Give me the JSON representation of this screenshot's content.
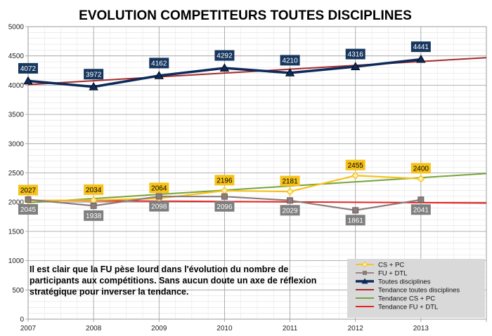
{
  "chart_data": {
    "type": "line",
    "title": "EVOLUTION COMPETITEURS TOUTES DISCIPLINES",
    "x": [
      "2007",
      "2008",
      "2009",
      "2010",
      "2011",
      "2012",
      "2013"
    ],
    "xlim": [
      2007,
      2014
    ],
    "ylim": [
      0,
      5000
    ],
    "y_ticks": [
      "0",
      "500",
      "1000",
      "1500",
      "2000",
      "2500",
      "3000",
      "3500",
      "4000",
      "4500",
      "5000"
    ],
    "grid": true,
    "legend_position": "bottom-right",
    "series": [
      {
        "name": "CS + PC",
        "values": [
          2027,
          2034,
          2064,
          2196,
          2181,
          2455,
          2400
        ],
        "labels": [
          "2027",
          "2034",
          "2064",
          "2196",
          "2181",
          "2455",
          "2400"
        ],
        "color": "#f5c21b",
        "label_bg": "#f5c21b",
        "label_fg": "#000000",
        "marker": "diamond"
      },
      {
        "name": "FU + DTL",
        "values": [
          2045,
          1938,
          2098,
          2096,
          2029,
          1861,
          2041
        ],
        "labels": [
          "2045",
          "1938",
          "2098",
          "2096",
          "2029",
          "1861",
          "2041"
        ],
        "color": "#8c7b7b",
        "label_bg": "#7f7f7f",
        "label_fg": "#ffffff",
        "marker": "square"
      },
      {
        "name": "Toutes disciplines",
        "values": [
          4072,
          3972,
          4162,
          4292,
          4210,
          4316,
          4441
        ],
        "labels": [
          "4072",
          "3972",
          "4162",
          "4292",
          "4210",
          "4316",
          "4441"
        ],
        "color": "#0d2a5c",
        "label_bg": "#17375e",
        "label_fg": "#ffffff",
        "marker": "triangle"
      }
    ],
    "trendlines": [
      {
        "name": "Tendance toutes disciplines",
        "color": "#a52a2a",
        "start": 4010,
        "end": 4470
      },
      {
        "name": "Tendance CS + PC",
        "color": "#76a338",
        "start": 1990,
        "end": 2490
      },
      {
        "name": "Tendance FU + DTL",
        "color": "#e8231f",
        "start": 2030,
        "end": 1985
      }
    ],
    "annotation": [
      "Il est clair que la FU pèse lourd dans l'évolution du nombre de",
      "participants aux compétitions. Sans aucun doute un axe de réflexion",
      "stratégique pour inverser la tendance."
    ]
  }
}
